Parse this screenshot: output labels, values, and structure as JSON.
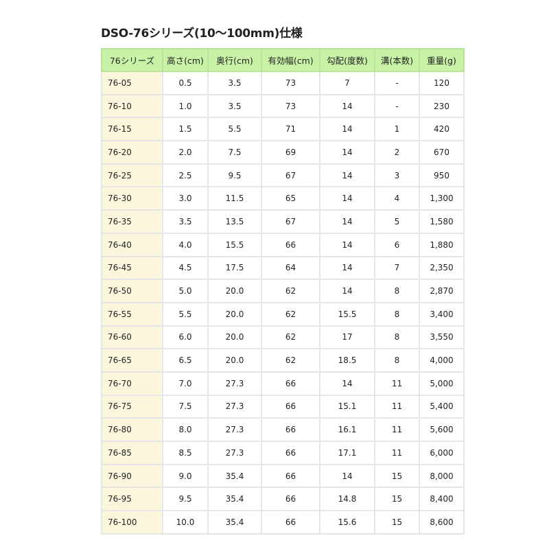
{
  "title": "DSO-76シリーズ(10〜100mm)仕様",
  "colors": {
    "header_bg": "#c8f2a6",
    "first_col_bg": "#fcf7dc"
  },
  "table": {
    "headers": [
      "76シリーズ",
      "高さ(cm)",
      "奥行(cm)",
      "有効幅(cm)",
      "勾配(度数)",
      "溝(本数)",
      "重量(g)"
    ],
    "rows": [
      [
        "76-05",
        "0.5",
        "3.5",
        "73",
        "7",
        "-",
        "120"
      ],
      [
        "76-10",
        "1.0",
        "3.5",
        "73",
        "14",
        "-",
        "230"
      ],
      [
        "76-15",
        "1.5",
        "5.5",
        "71",
        "14",
        "1",
        "420"
      ],
      [
        "76-20",
        "2.0",
        "7.5",
        "69",
        "14",
        "2",
        "670"
      ],
      [
        "76-25",
        "2.5",
        "9.5",
        "67",
        "14",
        "3",
        "950"
      ],
      [
        "76-30",
        "3.0",
        "11.5",
        "65",
        "14",
        "4",
        "1,300"
      ],
      [
        "76-35",
        "3.5",
        "13.5",
        "67",
        "14",
        "5",
        "1,580"
      ],
      [
        "76-40",
        "4.0",
        "15.5",
        "66",
        "14",
        "6",
        "1,880"
      ],
      [
        "76-45",
        "4.5",
        "17.5",
        "64",
        "14",
        "7",
        "2,350"
      ],
      [
        "76-50",
        "5.0",
        "20.0",
        "62",
        "14",
        "8",
        "2,870"
      ],
      [
        "76-55",
        "5.5",
        "20.0",
        "62",
        "15.5",
        "8",
        "3,400"
      ],
      [
        "76-60",
        "6.0",
        "20.0",
        "62",
        "17",
        "8",
        "3,550"
      ],
      [
        "76-65",
        "6.5",
        "20.0",
        "62",
        "18.5",
        "8",
        "4,000"
      ],
      [
        "76-70",
        "7.0",
        "27.3",
        "66",
        "14",
        "11",
        "5,000"
      ],
      [
        "76-75",
        "7.5",
        "27.3",
        "66",
        "15.1",
        "11",
        "5,400"
      ],
      [
        "76-80",
        "8.0",
        "27.3",
        "66",
        "16.1",
        "11",
        "5,600"
      ],
      [
        "76-85",
        "8.5",
        "27.3",
        "66",
        "17.1",
        "11",
        "6,000"
      ],
      [
        "76-90",
        "9.0",
        "35.4",
        "66",
        "14",
        "15",
        "8,000"
      ],
      [
        "76-95",
        "9.5",
        "35.4",
        "66",
        "14.8",
        "15",
        "8,400"
      ],
      [
        "76-100",
        "10.0",
        "35.4",
        "66",
        "15.6",
        "15",
        "8,600"
      ]
    ]
  }
}
